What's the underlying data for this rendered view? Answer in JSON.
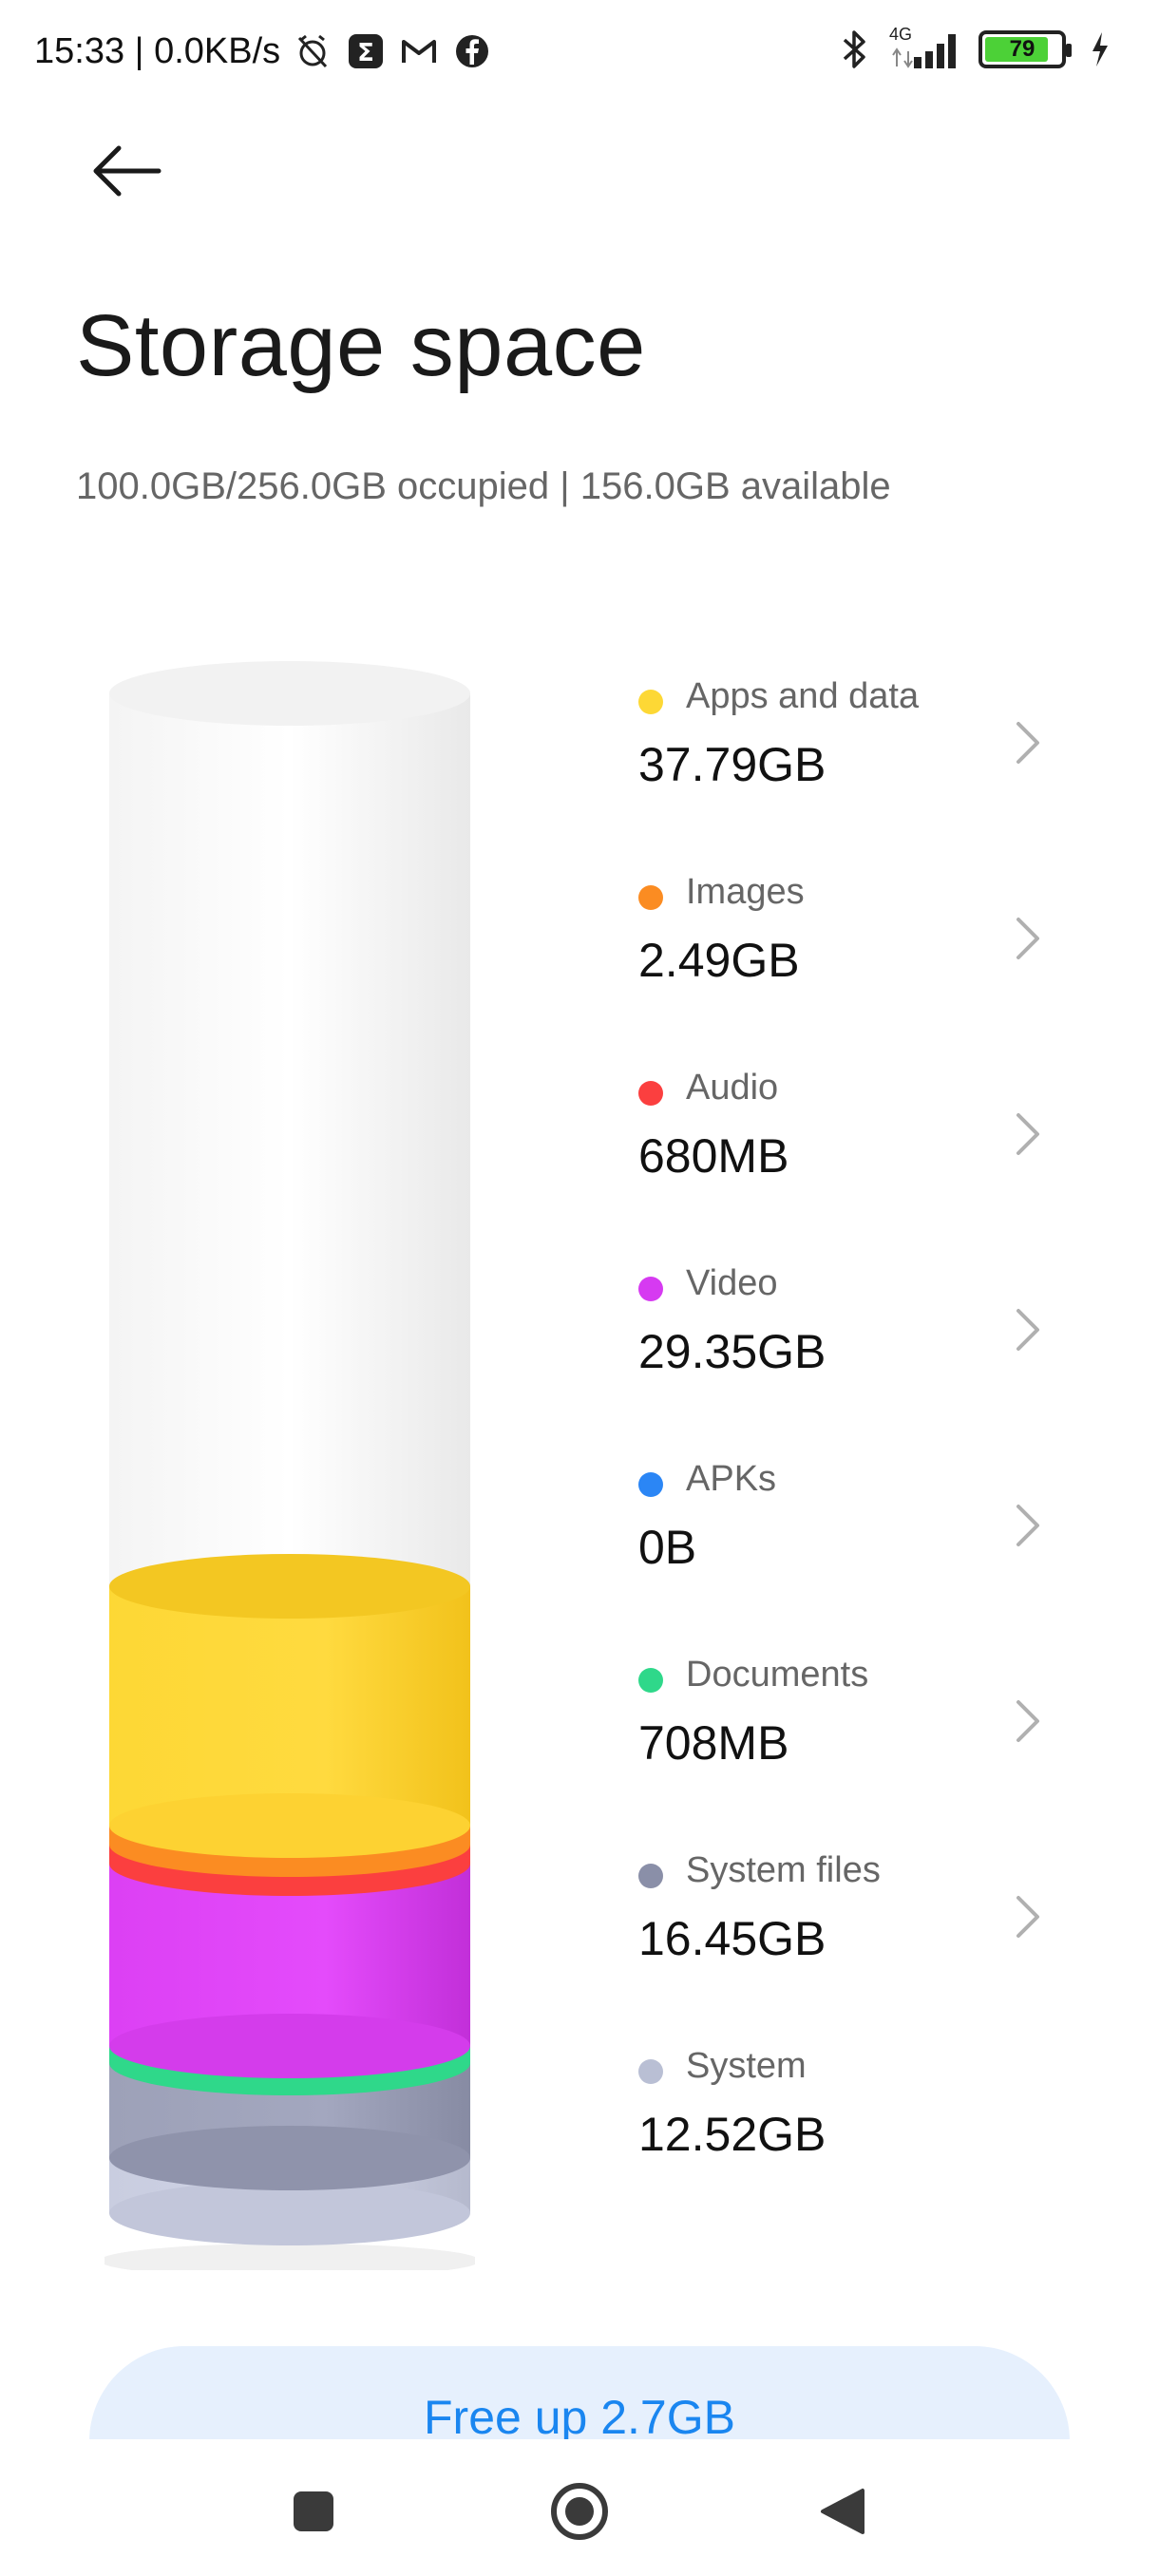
{
  "status_bar": {
    "time_speed": "15:33 | 0.0KB/s",
    "battery": "79",
    "network": "4G"
  },
  "page": {
    "title": "Storage space",
    "summary": "100.0GB/256.0GB occupied | 156.0GB available"
  },
  "chart_data": {
    "type": "stacked-cylinder",
    "total": "256.0GB",
    "occupied": "100.0GB",
    "available": "156.0GB",
    "categories": [
      {
        "name": "Apps and data",
        "value": "37.79GB",
        "color": "#fdd835",
        "has_chevron": true
      },
      {
        "name": "Images",
        "value": "2.49GB",
        "color": "#fb8c22",
        "has_chevron": true
      },
      {
        "name": "Audio",
        "value": "680MB",
        "color": "#fb3f3f",
        "has_chevron": true
      },
      {
        "name": "Video",
        "value": "29.35GB",
        "color": "#d63af1",
        "has_chevron": true
      },
      {
        "name": "APKs",
        "value": "0B",
        "color": "#2b86f5",
        "has_chevron": true
      },
      {
        "name": "Documents",
        "value": "708MB",
        "color": "#2fd88a",
        "has_chevron": true
      },
      {
        "name": "System files",
        "value": "16.45GB",
        "color": "#8a8fa8",
        "has_chevron": true
      },
      {
        "name": "System",
        "value": "12.52GB",
        "color": "#b9bfd4",
        "has_chevron": false
      }
    ]
  },
  "actions": {
    "free_up_label": "Free up 2.7GB"
  }
}
